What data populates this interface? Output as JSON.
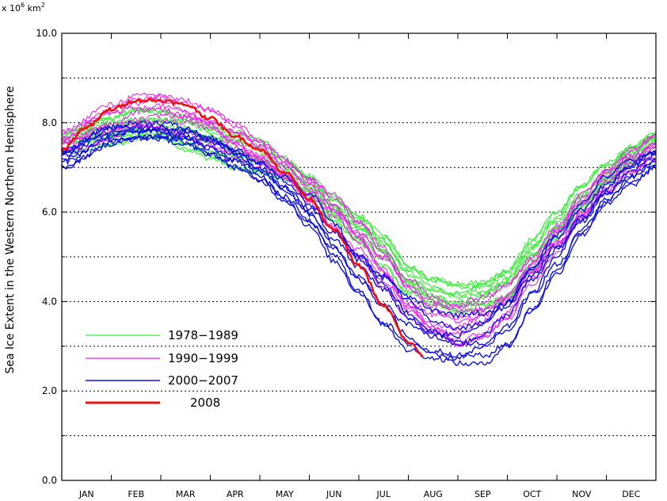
{
  "chart_data": {
    "type": "line",
    "unit_label_prefix": "x 10",
    "unit_label_exp": "6",
    "unit_label_suffix": "km",
    "unit_label_exp2": "2",
    "ylabel": "Sea Ice Extent in the Western Northern Hemisphere",
    "xlabel": "",
    "ylim": [
      0,
      10
    ],
    "y_ticks": [
      "0.0",
      "2.0",
      "4.0",
      "6.0",
      "8.0",
      "10.0"
    ],
    "y_gridlines": [
      1,
      3,
      5,
      7,
      9,
      2,
      4,
      6,
      8
    ],
    "x_categories": [
      "JAN",
      "FEB",
      "MAR",
      "APR",
      "MAY",
      "JUN",
      "JUL",
      "AUG",
      "SEP",
      "OCT",
      "NOV",
      "DEC"
    ],
    "grid": "horizontal dotted",
    "legend_position": "lower-left",
    "series": [
      {
        "name": "1978−1989",
        "color": "#33ee33",
        "x": [
          0,
          1,
          1.5,
          2,
          2.5,
          3,
          3.5,
          4,
          4.5,
          5,
          5.5,
          6,
          6.5,
          7,
          7.5,
          8,
          8.5,
          9,
          9.5,
          10,
          10.5,
          11,
          11.5,
          12
        ],
        "y_min": [
          7.3,
          7.5,
          7.6,
          7.6,
          7.4,
          7.2,
          7.0,
          6.9,
          6.7,
          6.3,
          5.8,
          5.3,
          4.8,
          4.2,
          3.9,
          3.7,
          3.8,
          4.0,
          4.7,
          5.4,
          6.0,
          6.6,
          7.1,
          7.5
        ],
        "y_max": [
          7.8,
          8.1,
          8.3,
          8.3,
          8.2,
          8.0,
          7.8,
          7.6,
          7.2,
          6.8,
          6.4,
          6.0,
          5.5,
          4.8,
          4.5,
          4.4,
          4.5,
          4.8,
          5.4,
          6.0,
          6.6,
          7.1,
          7.5,
          7.8
        ]
      },
      {
        "name": "1990−1999",
        "color": "#ee22ee",
        "x": [
          0,
          1,
          1.5,
          2,
          2.5,
          3,
          3.5,
          4,
          4.5,
          5,
          5.5,
          6,
          6.5,
          7,
          7.5,
          8,
          8.5,
          9,
          9.5,
          10,
          10.5,
          11,
          11.5,
          12
        ],
        "y_min": [
          7.3,
          7.6,
          7.8,
          7.8,
          7.7,
          7.5,
          7.2,
          7.0,
          6.7,
          6.2,
          5.6,
          5.0,
          4.3,
          3.6,
          3.2,
          3.0,
          3.2,
          3.6,
          4.4,
          5.1,
          5.8,
          6.4,
          6.9,
          7.2
        ],
        "y_max": [
          7.8,
          8.4,
          8.6,
          8.7,
          8.5,
          8.3,
          8.0,
          7.6,
          7.2,
          6.8,
          6.4,
          5.8,
          5.2,
          4.5,
          4.1,
          4.0,
          4.1,
          4.4,
          5.0,
          5.7,
          6.4,
          7.0,
          7.4,
          7.7
        ]
      },
      {
        "name": "2000−2007",
        "color": "#1111dd",
        "x": [
          0,
          1,
          1.5,
          2,
          2.5,
          3,
          3.5,
          4,
          4.5,
          5,
          5.5,
          6,
          6.5,
          7,
          7.5,
          8,
          8.5,
          9,
          9.5,
          10,
          10.5,
          11,
          11.5,
          12
        ],
        "y_min": [
          7.0,
          7.5,
          7.6,
          7.6,
          7.5,
          7.3,
          7.0,
          6.7,
          6.2,
          5.6,
          4.9,
          4.2,
          3.5,
          2.9,
          2.6,
          2.5,
          2.6,
          3.0,
          3.8,
          4.6,
          5.4,
          6.1,
          6.6,
          7.0
        ],
        "y_max": [
          7.4,
          7.9,
          8.0,
          8.0,
          7.9,
          7.7,
          7.4,
          7.1,
          6.8,
          6.4,
          5.8,
          5.1,
          4.6,
          4.1,
          3.8,
          3.7,
          3.8,
          4.1,
          4.8,
          5.5,
          6.2,
          6.8,
          7.2,
          7.4
        ]
      },
      {
        "name": "2008",
        "color": "#ee1111",
        "x": [
          0,
          0.5,
          1,
          1.5,
          2,
          2.5,
          3,
          3.5,
          4,
          4.5,
          5,
          5.5,
          6,
          6.5,
          7,
          7.3
        ],
        "y": [
          7.4,
          7.9,
          8.3,
          8.5,
          8.5,
          8.4,
          8.1,
          7.7,
          7.4,
          6.9,
          6.3,
          5.6,
          4.8,
          3.9,
          3.1,
          2.8
        ]
      }
    ],
    "legend": [
      {
        "label": "1978−1989",
        "color": "#33ee33",
        "width": 1.2
      },
      {
        "label": "1990−1999",
        "color": "#ee22ee",
        "width": 1.2
      },
      {
        "label": "2000−2007",
        "color": "#1111dd",
        "width": 1.5
      },
      {
        "label": "2008",
        "color": "#ee1111",
        "width": 3
      }
    ]
  }
}
